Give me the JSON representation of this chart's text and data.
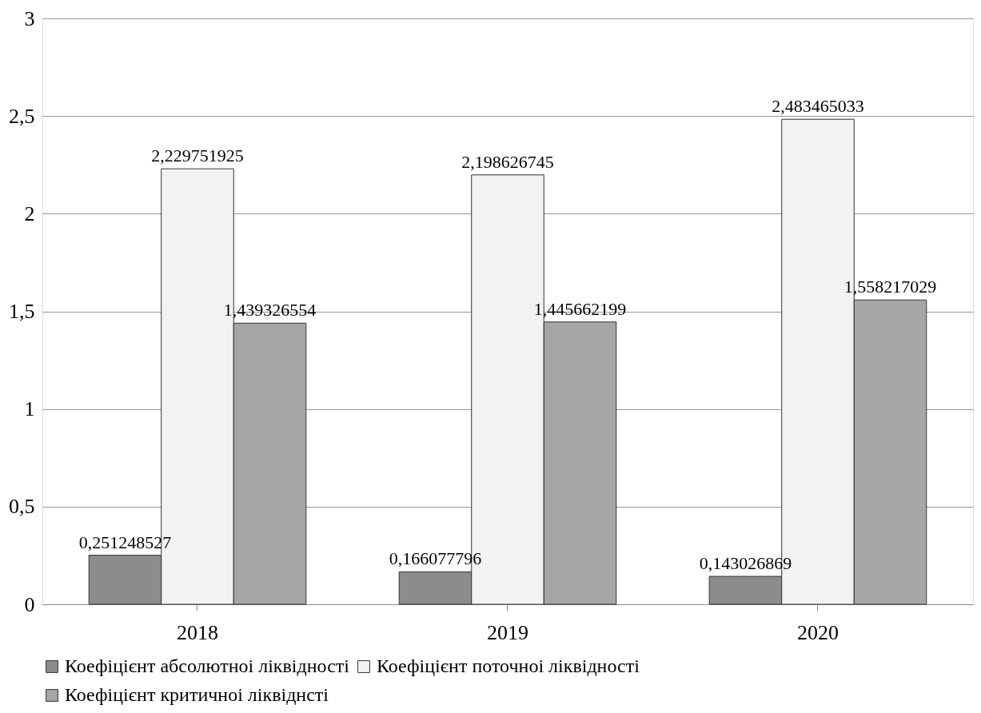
{
  "chart_data": {
    "type": "bar",
    "categories": [
      "2018",
      "2019",
      "2020"
    ],
    "series": [
      {
        "name": "Коефіцієнт абсолютноі ліквідності",
        "color": "#8c8c8c",
        "values": [
          0.251248527,
          0.166077796,
          0.143026869
        ],
        "value_labels": [
          "0,251248527",
          "0,166077796",
          "0,143026869"
        ]
      },
      {
        "name": "Коефіцієнт поточноі ліквідності",
        "color": "#f2f2f2",
        "values": [
          2.229751925,
          2.198626745,
          2.483465033
        ],
        "value_labels": [
          "2,229751925",
          "2,198626745",
          "2,483465033"
        ]
      },
      {
        "name": "Коефіцієнт критичноі ліквіднсті",
        "color": "#a6a6a6",
        "values": [
          1.439326554,
          1.445662199,
          1.558217029
        ],
        "value_labels": [
          "1,439326554",
          "1,445662199",
          "1,558217029"
        ]
      }
    ],
    "ylim": [
      0,
      3
    ],
    "yticks": [
      0,
      {
        "value": 0.5,
        "label": "0,5"
      },
      1,
      {
        "value": 1.5,
        "label": "1,5"
      },
      2,
      {
        "value": 2.5,
        "label": "2,5"
      },
      3
    ],
    "grid": "y",
    "legend": "bottom"
  }
}
